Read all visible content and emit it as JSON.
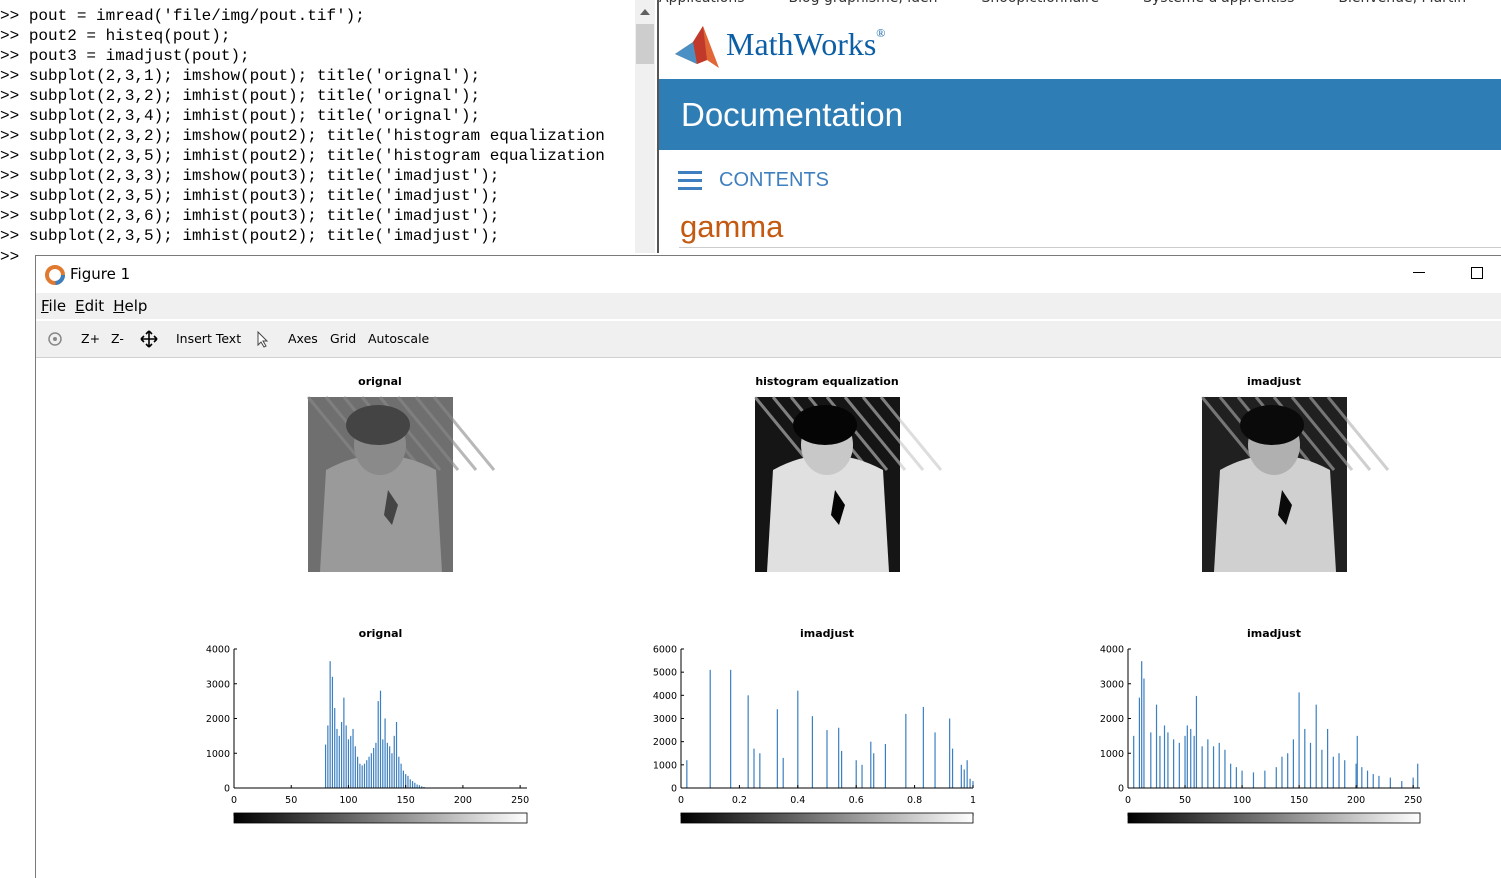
{
  "command_window": {
    "prompt": ">>",
    "lines": [
      "pout = imread('file/img/pout.tif');",
      "pout2 = histeq(pout);",
      "pout3 = imadjust(pout);",
      "subplot(2,3,1); imshow(pout); title('orignal');",
      "subplot(2,3,2); imhist(pout); title('orignal');",
      "subplot(2,3,4); imhist(pout); title('orignal');",
      "subplot(2,3,2); imshow(pout2); title('histogram equalization",
      "subplot(2,3,5); imhist(pout2); title('histogram equalization",
      "subplot(2,3,3); imshow(pout3); title('imadjust');",
      "subplot(2,3,5); imhist(pout3); title('imadjust');",
      "subplot(2,3,6); imhist(pout3); title('imadjust');",
      "subplot(2,3,5); imhist(pout2); title('imadjust');"
    ]
  },
  "browser": {
    "bookmarks": [
      "Applications",
      "Blog graphisme, iden",
      "Snoopictionnaire",
      "Système d'apprentiss",
      "Bienvenue, Martin"
    ],
    "logo": "MathWorks",
    "logo_mark": "®",
    "banner": "Documentation",
    "contents": "CONTENTS",
    "heading": "gamma"
  },
  "figure": {
    "title": "Figure 1",
    "menu": [
      "File",
      "Edit",
      "Help"
    ],
    "toolbar": [
      "Z+",
      "Z-",
      "Insert Text",
      "Axes",
      "Grid",
      "Autoscale"
    ],
    "images": [
      {
        "title": "orignal"
      },
      {
        "title": "histogram equalization"
      },
      {
        "title": "imadjust"
      }
    ]
  },
  "chart_data": [
    {
      "type": "bar",
      "title": "orignal",
      "color": "#3b7fc0",
      "x": [
        80,
        82,
        84,
        86,
        88,
        90,
        92,
        94,
        96,
        98,
        100,
        102,
        104,
        106,
        108,
        110,
        112,
        114,
        116,
        118,
        120,
        122,
        124,
        126,
        128,
        130,
        132,
        134,
        136,
        138,
        140,
        142,
        144,
        146,
        148,
        150,
        152,
        154,
        156,
        158,
        160,
        162,
        164,
        166
      ],
      "values": [
        1250,
        1800,
        3650,
        3200,
        2300,
        1700,
        1500,
        1900,
        2600,
        1800,
        1400,
        1500,
        1700,
        1200,
        900,
        700,
        650,
        700,
        800,
        900,
        1000,
        1150,
        1300,
        2500,
        2800,
        1400,
        2000,
        1300,
        1200,
        1000,
        1500,
        1900,
        900,
        700,
        500,
        400,
        350,
        250,
        200,
        150,
        100,
        80,
        50,
        30
      ],
      "xlim": [
        0,
        256
      ],
      "ylim": [
        0,
        4000
      ],
      "xticks": [
        0,
        50,
        100,
        150,
        200,
        250
      ],
      "yticks": [
        0,
        1000,
        2000,
        3000,
        4000
      ]
    },
    {
      "type": "bar",
      "title": "imadjust",
      "color": "#3b7fc0",
      "x": [
        0.02,
        0.1,
        0.17,
        0.23,
        0.25,
        0.27,
        0.33,
        0.35,
        0.4,
        0.45,
        0.5,
        0.54,
        0.55,
        0.6,
        0.62,
        0.65,
        0.66,
        0.7,
        0.77,
        0.83,
        0.87,
        0.92,
        0.93,
        0.96,
        0.97,
        0.98,
        0.99,
        1
      ],
      "values": [
        1200,
        5100,
        5100,
        4000,
        1700,
        1500,
        3400,
        1300,
        4200,
        3100,
        2500,
        2600,
        1600,
        1200,
        1000,
        2000,
        1500,
        1900,
        3200,
        3500,
        2400,
        3000,
        1700,
        1000,
        800,
        1200,
        400,
        300
      ],
      "xlim": [
        0,
        1
      ],
      "ylim": [
        0,
        6000
      ],
      "xticks": [
        0,
        0.2,
        0.4,
        0.6,
        0.8,
        1
      ],
      "yticks": [
        0,
        1000,
        2000,
        3000,
        4000,
        5000,
        6000
      ]
    },
    {
      "type": "bar",
      "title": "imadjust",
      "color": "#3b7fc0",
      "x": [
        5,
        10,
        12,
        14,
        20,
        25,
        28,
        32,
        35,
        40,
        45,
        50,
        52,
        55,
        58,
        60,
        65,
        70,
        75,
        80,
        85,
        90,
        95,
        100,
        110,
        120,
        130,
        135,
        140,
        145,
        150,
        155,
        160,
        165,
        170,
        175,
        180,
        185,
        190,
        200,
        201,
        205,
        210,
        215,
        220,
        230,
        240,
        250,
        254
      ],
      "values": [
        1500,
        2600,
        3650,
        3150,
        1600,
        2400,
        1500,
        1800,
        1600,
        1400,
        1300,
        1500,
        1800,
        1700,
        1500,
        2650,
        1200,
        1400,
        1200,
        1300,
        1100,
        700,
        600,
        500,
        450,
        500,
        600,
        900,
        1000,
        1400,
        2750,
        1700,
        1300,
        2400,
        1100,
        1700,
        900,
        1000,
        800,
        700,
        1500,
        600,
        500,
        400,
        350,
        300,
        200,
        300,
        700
      ],
      "xlim": [
        0,
        256
      ],
      "ylim": [
        0,
        4000
      ],
      "xticks": [
        0,
        50,
        100,
        150,
        200,
        250
      ],
      "yticks": [
        0,
        1000,
        2000,
        3000,
        4000
      ]
    }
  ]
}
